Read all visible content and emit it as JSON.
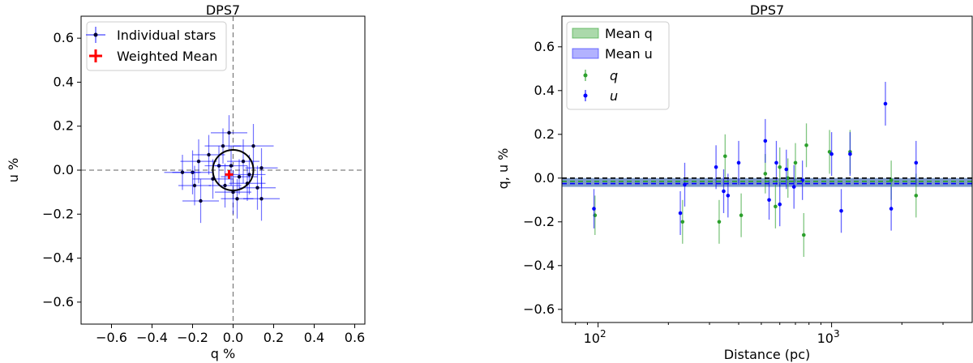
{
  "chart_data": [
    {
      "type": "scatter",
      "title": "DPS7",
      "xlabel": "q %",
      "ylabel": "u %",
      "xlim": [
        -0.75,
        0.65
      ],
      "ylim": [
        -0.7,
        0.7
      ],
      "xticks": [
        -0.6,
        -0.4,
        -0.2,
        0.0,
        0.2,
        0.4,
        0.6
      ],
      "xtick_labels": [
        "−0.6",
        "−0.4",
        "−0.2",
        "0.0",
        "0.2",
        "0.4",
        "0.6"
      ],
      "yticks": [
        -0.6,
        -0.4,
        -0.2,
        0.0,
        0.2,
        0.4,
        0.6
      ],
      "ytick_labels": [
        "−0.6",
        "−0.4",
        "−0.2",
        "0.0",
        "0.2",
        "0.4",
        "0.6"
      ],
      "grid": false,
      "legend_position": "top-left",
      "reference_lines": {
        "x": 0,
        "y": 0,
        "style": "dashed",
        "color": "#808080"
      },
      "circle": {
        "center": [
          0,
          0
        ],
        "radius": 0.1,
        "color": "#000000"
      },
      "series": [
        {
          "name": "Individual stars",
          "color": "#0000ff",
          "marker_color": "#000033",
          "points": [
            {
              "q": -0.16,
              "u": -0.14,
              "qerr": 0.09,
              "uerr": 0.1
            },
            {
              "q": -0.2,
              "u": -0.01,
              "qerr": 0.1,
              "uerr": 0.1
            },
            {
              "q": -0.25,
              "u": -0.01,
              "qerr": 0.09,
              "uerr": 0.08
            },
            {
              "q": -0.17,
              "u": 0.04,
              "qerr": 0.09,
              "uerr": 0.1
            },
            {
              "q": -0.12,
              "u": 0.07,
              "qerr": 0.08,
              "uerr": 0.09
            },
            {
              "q": -0.1,
              "u": -0.04,
              "qerr": 0.1,
              "uerr": 0.09
            },
            {
              "q": -0.07,
              "u": 0.02,
              "qerr": 0.07,
              "uerr": 0.09
            },
            {
              "q": -0.04,
              "u": -0.07,
              "qerr": 0.08,
              "uerr": 0.1
            },
            {
              "q": -0.02,
              "u": 0.17,
              "qerr": 0.09,
              "uerr": 0.08
            },
            {
              "q": -0.01,
              "u": 0.02,
              "qerr": 0.08,
              "uerr": 0.09
            },
            {
              "q": 0.0,
              "u": -0.1,
              "qerr": 0.09,
              "uerr": 0.1
            },
            {
              "q": 0.02,
              "u": -0.13,
              "qerr": 0.08,
              "uerr": 0.09
            },
            {
              "q": 0.03,
              "u": -0.03,
              "qerr": 0.09,
              "uerr": 0.08
            },
            {
              "q": 0.05,
              "u": 0.04,
              "qerr": 0.08,
              "uerr": 0.1
            },
            {
              "q": 0.07,
              "u": -0.06,
              "qerr": 0.09,
              "uerr": 0.08
            },
            {
              "q": 0.1,
              "u": 0.11,
              "qerr": 0.1,
              "uerr": 0.1
            },
            {
              "q": 0.12,
              "u": -0.08,
              "qerr": 0.09,
              "uerr": 0.1
            },
            {
              "q": 0.14,
              "u": 0.01,
              "qerr": 0.08,
              "uerr": 0.09
            },
            {
              "q": 0.14,
              "u": -0.13,
              "qerr": 0.09,
              "uerr": 0.1
            },
            {
              "q": -0.19,
              "u": -0.07,
              "qerr": 0.08,
              "uerr": 0.09
            },
            {
              "q": -0.05,
              "u": 0.11,
              "qerr": 0.09,
              "uerr": 0.08
            },
            {
              "q": 0.08,
              "u": -0.02,
              "qerr": 0.08,
              "uerr": 0.09
            }
          ]
        },
        {
          "name": "Weighted Mean",
          "color": "#ff0000",
          "points": [
            {
              "q": -0.02,
              "u": -0.02,
              "qerr": 0.02,
              "uerr": 0.02
            }
          ]
        }
      ]
    },
    {
      "type": "scatter",
      "title": "DPS7",
      "xlabel": "Distance (pc)",
      "ylabel": "q, u %",
      "xscale": "log",
      "xlim": [
        70,
        4000
      ],
      "ylim": [
        -0.66,
        0.74
      ],
      "xticks": [
        100,
        1000
      ],
      "xtick_base": "10",
      "xtick_exponents": [
        "2",
        "3"
      ],
      "yticks": [
        -0.6,
        -0.4,
        -0.2,
        0.0,
        0.2,
        0.4,
        0.6
      ],
      "ytick_labels": [
        "−0.6",
        "−0.4",
        "−0.2",
        "0.0",
        "0.2",
        "0.4",
        "0.6"
      ],
      "grid": false,
      "legend_position": "top-left",
      "bands": [
        {
          "name": "Mean q",
          "color": "#2ca02c",
          "center": -0.02,
          "half_width": 0.02
        },
        {
          "name": "Mean u",
          "color": "#0000ff",
          "center": -0.02,
          "half_width": 0.02
        }
      ],
      "reference_lines": [
        {
          "y": 0.0,
          "color": "#000000",
          "style": "dashed"
        },
        {
          "y": -0.015,
          "color": "#2ca02c",
          "style": "dashed"
        },
        {
          "y": -0.025,
          "color": "#0000ff",
          "style": "dashed"
        }
      ],
      "series": [
        {
          "name": "q",
          "color": "#2ca02c",
          "points": [
            {
              "d": 97,
              "v": -0.17,
              "err": 0.09
            },
            {
              "d": 230,
              "v": -0.2,
              "err": 0.1
            },
            {
              "d": 330,
              "v": -0.2,
              "err": 0.1
            },
            {
              "d": 350,
              "v": 0.1,
              "err": 0.1
            },
            {
              "d": 410,
              "v": -0.17,
              "err": 0.1
            },
            {
              "d": 520,
              "v": 0.02,
              "err": 0.09
            },
            {
              "d": 575,
              "v": -0.13,
              "err": 0.1
            },
            {
              "d": 600,
              "v": 0.05,
              "err": 0.09
            },
            {
              "d": 650,
              "v": 0.0,
              "err": 0.09
            },
            {
              "d": 700,
              "v": 0.07,
              "err": 0.09
            },
            {
              "d": 760,
              "v": -0.26,
              "err": 0.1
            },
            {
              "d": 780,
              "v": 0.15,
              "err": 0.1
            },
            {
              "d": 980,
              "v": 0.12,
              "err": 0.1
            },
            {
              "d": 1200,
              "v": 0.12,
              "err": 0.1
            },
            {
              "d": 1800,
              "v": -0.01,
              "err": 0.09
            },
            {
              "d": 2300,
              "v": -0.08,
              "err": 0.1
            }
          ]
        },
        {
          "name": "u",
          "color": "#0000ff",
          "points": [
            {
              "d": 96,
              "v": -0.14,
              "err": 0.09
            },
            {
              "d": 225,
              "v": -0.16,
              "err": 0.1
            },
            {
              "d": 235,
              "v": -0.03,
              "err": 0.1
            },
            {
              "d": 320,
              "v": 0.05,
              "err": 0.1
            },
            {
              "d": 345,
              "v": -0.06,
              "err": 0.1
            },
            {
              "d": 360,
              "v": -0.08,
              "err": 0.1
            },
            {
              "d": 400,
              "v": 0.07,
              "err": 0.1
            },
            {
              "d": 520,
              "v": 0.17,
              "err": 0.1
            },
            {
              "d": 540,
              "v": -0.1,
              "err": 0.09
            },
            {
              "d": 580,
              "v": 0.07,
              "err": 0.1
            },
            {
              "d": 600,
              "v": -0.12,
              "err": 0.1
            },
            {
              "d": 640,
              "v": 0.04,
              "err": 0.09
            },
            {
              "d": 690,
              "v": -0.04,
              "err": 0.1
            },
            {
              "d": 750,
              "v": -0.01,
              "err": 0.09
            },
            {
              "d": 1000,
              "v": 0.11,
              "err": 0.1
            },
            {
              "d": 1100,
              "v": -0.15,
              "err": 0.1
            },
            {
              "d": 1200,
              "v": 0.11,
              "err": 0.1
            },
            {
              "d": 1700,
              "v": 0.34,
              "err": 0.1
            },
            {
              "d": 1800,
              "v": -0.14,
              "err": 0.1
            },
            {
              "d": 2300,
              "v": 0.07,
              "err": 0.1
            }
          ]
        }
      ]
    }
  ]
}
